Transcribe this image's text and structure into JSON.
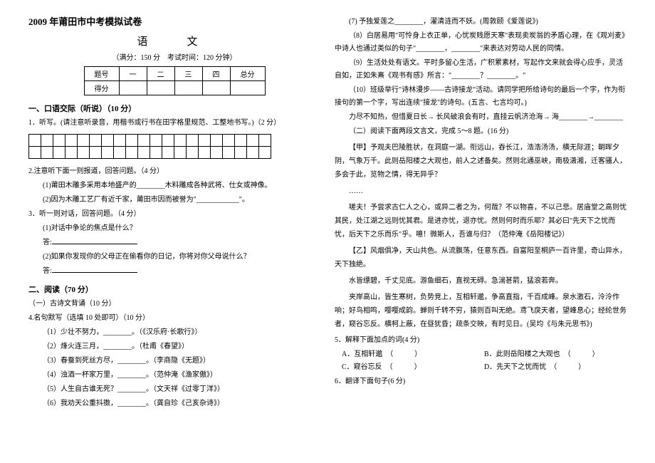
{
  "header": {
    "main_title": "2009 年莆田市中考模拟试卷",
    "subject": "语　文",
    "info": "（满分：150 分　考试时间：120 分钟）"
  },
  "score_table": {
    "cols": [
      "题号",
      "一",
      "二",
      "三",
      "四",
      "总分"
    ],
    "row_label": "得分"
  },
  "sec1_title": "一、口语交际（听说）（10 分）",
  "q1": "1．听写。(请注意听录音，用楷书或行书在田字格里规范、工整地书写。)（2 分）",
  "q2": "2.注意听下面一则报道，回答问题。（4 分）",
  "q2a": "(1)莆田木雕多采用本地盛产的________木料雕成各种武将、仕女或神像。",
  "q2b": "(2)因为木雕工艺厂有近千家，莆田市因而被誉为\"____________\"。",
  "q3": "3．听一则对话，回答问题。（4 分）",
  "q3a": "(1)对话中争论的焦点是什么？",
  "q3a_ans": "答:",
  "q3b": "(2)如果你发现你的父母正在偷看你的日记，你将对你父母说什么？",
  "q3b_ans": "答:",
  "sec2_title": "二、阅读（70 分）",
  "sec2a": "（一）古诗文背诵（10 分）",
  "q4": "4.名句默写（选填 10 处即可）（10 分）",
  "q4_1": "（1）少壮不努力，________。（《汉乐府·长歌行》）",
  "q4_2": "（2）烽火连三月，________。（杜甫《春望》）",
  "q4_3": "（3）春蚕到死丝方尽，________。（李商隐《无题》）",
  "q4_4": "（4）浊酒一杯家万里，________。（范仲淹《渔家傲》）",
  "q4_5": "（5）人生自古谁无死？________。（文天祥《过零丁洋》）",
  "q4_6": "（6）我劝天公重抖擞，________。（龚自珍《己亥杂诗》）",
  "q4_7": "(7) 予独爱莲之________，濯清涟而不妖。(周敦颐《爱莲说》)",
  "q4_8": "（8）白居易用\"可怜身上衣正单，心忧炭贱愿天寒\"表现卖炭翁的矛盾心理，在《观刈麦》中诗人也通过类似的句子\"________，________\"来表达对劳动人民的同情。",
  "q4_9": "（9）生活处处有语文。平时多留心生活，广积累素材，写起作文来就会得心应手，灵活自如，正如朱熹《观书有感》所言：\"________？________。\"",
  "q4_10": "（10）班级举行\"诗林漫步——古诗接龙\"活动。请同学把所给诗句的最后一个字，作为衔接句的第一个字，写出连续\"接龙\"的诗句。(五言、七言均可。)",
  "q4_10b": "力尽不知热，但惜夏日长→ 长风破浪会有时，直挂云帆济沧海→ 海________→________",
  "sec2b": "（二）阅读下面两段文言文，完成 5～8 题。(16 分)",
  "p1": "【甲】予观夫巴陵胜状，在洞庭一湖。衔远山，吞长江，浩浩汤汤，横无际涯；朝晖夕阴，气象万千。此则岳阳楼之大观也，前人之述备矣。然则北通巫峡，南极潇湘，迁客骚人，多会于此，览物之情，得无异乎？",
  "p_dots": "……",
  "p2": "嗟夫！予尝求古仁人之心，或异二者之为，何哉？不以物喜，不以己悲。居庙堂之高则忧其民，处江湖之远则忧其君。是进亦忧，退亦忧。然则何时而乐耶？其必曰\"先天下之忧而忧，后天下之乐而乐\"乎。噫！微斯人，吾谁与归？（范仲淹《岳阳楼记》）",
  "p3": "【乙】风烟俱净，天山共色。从流飘荡，任意东西。自富阳至桐庐一百许里，奇山异水，天下独绝。",
  "p4": "水皆缥碧，千丈见底。游鱼细石，直视无碍。急湍甚箭，猛浪若奔。",
  "p5": "夹岸高山，皆生寒树，负势竞上，互相轩邈，争高直指，千百成峰。泉水激石，泠泠作响；好鸟相鸣，嘤嘤成韵。蝉则千转不穷，猿则百叫无绝。鸢飞戾天者，望峰息心；经纶世务者，窥谷忘反。横柯上蔽，在昼犹昏；疏条交映，有时见日。(吴均《与朱元思书》)",
  "q5": "5．解释下面加点的词(4 分)",
  "q5a": "A．互相轩邈　（　　　）",
  "q5b": "B．此则岳阳楼之大观也　（　　　）",
  "q5c": "C．窥谷忘反　（　　　）",
  "q5d": "D．先天下之忧而忧　（　　　）",
  "q6": "6．翻译下面句子(6 分)"
}
